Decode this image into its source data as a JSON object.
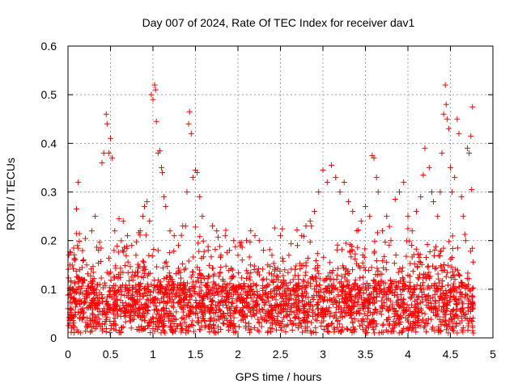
{
  "chart_data": {
    "type": "scatter",
    "title": "Day 007 of 2024, Rate Of TEC Index for receiver dav1",
    "xlabel": "GPS time / hours",
    "ylabel": "ROTI / TECUs",
    "xlim": [
      0,
      5
    ],
    "ylim": [
      0,
      0.6
    ],
    "x_ticks": [
      "0",
      "0.5",
      "1",
      "1.5",
      "2",
      "2.5",
      "3",
      "3.5",
      "4",
      "4.5",
      "5"
    ],
    "y_ticks": [
      "0",
      "0.1",
      "0.2",
      "0.3",
      "0.4",
      "0.5",
      "0.6"
    ],
    "grid": true,
    "legend": "none",
    "marker": "+",
    "color": "#ff0000",
    "data_x_range": [
      0,
      4.77
    ],
    "series": [
      {
        "points": [
          [
            0.0,
            0.06
          ],
          [
            0.01,
            0.17
          ],
          [
            0.02,
            0.03
          ],
          [
            0.03,
            0.175
          ],
          [
            0.05,
            0.1
          ],
          [
            0.07,
            0.08
          ],
          [
            0.1,
            0.265
          ],
          [
            0.12,
            0.32
          ],
          [
            0.14,
            0.12
          ],
          [
            0.18,
            0.05
          ],
          [
            0.22,
            0.15
          ],
          [
            0.28,
            0.22
          ],
          [
            0.32,
            0.25
          ],
          [
            0.36,
            0.18
          ],
          [
            0.4,
            0.36
          ],
          [
            0.42,
            0.38
          ],
          [
            0.45,
            0.46
          ],
          [
            0.46,
            0.44
          ],
          [
            0.48,
            0.38
          ],
          [
            0.5,
            0.41
          ],
          [
            0.52,
            0.37
          ],
          [
            0.55,
            0.22
          ],
          [
            0.6,
            0.245
          ],
          [
            0.65,
            0.24
          ],
          [
            0.7,
            0.21
          ],
          [
            0.75,
            0.19
          ],
          [
            0.8,
            0.17
          ],
          [
            0.85,
            0.22
          ],
          [
            0.88,
            0.25
          ],
          [
            0.9,
            0.27
          ],
          [
            0.93,
            0.28
          ],
          [
            0.96,
            0.24
          ],
          [
            0.98,
            0.5
          ],
          [
            1.0,
            0.49
          ],
          [
            1.02,
            0.52
          ],
          [
            1.03,
            0.51
          ],
          [
            1.04,
            0.445
          ],
          [
            1.06,
            0.38
          ],
          [
            1.08,
            0.385
          ],
          [
            1.1,
            0.35
          ],
          [
            1.11,
            0.34
          ],
          [
            1.13,
            0.29
          ],
          [
            1.15,
            0.27
          ],
          [
            1.2,
            0.22
          ],
          [
            1.25,
            0.21
          ],
          [
            1.3,
            0.19
          ],
          [
            1.35,
            0.23
          ],
          [
            1.4,
            0.3
          ],
          [
            1.42,
            0.44
          ],
          [
            1.43,
            0.465
          ],
          [
            1.45,
            0.42
          ],
          [
            1.47,
            0.33
          ],
          [
            1.5,
            0.345
          ],
          [
            1.52,
            0.34
          ],
          [
            1.55,
            0.29
          ],
          [
            1.58,
            0.25
          ],
          [
            1.65,
            0.18
          ],
          [
            1.7,
            0.23
          ],
          [
            1.75,
            0.22
          ],
          [
            1.8,
            0.17
          ],
          [
            1.85,
            0.21
          ],
          [
            1.9,
            0.18
          ],
          [
            1.95,
            0.2
          ],
          [
            2.0,
            0.17
          ],
          [
            2.05,
            0.16
          ],
          [
            2.1,
            0.2
          ],
          [
            2.15,
            0.22
          ],
          [
            2.2,
            0.21
          ],
          [
            2.25,
            0.2
          ],
          [
            2.3,
            0.18
          ],
          [
            2.35,
            0.15
          ],
          [
            2.4,
            0.17
          ],
          [
            2.45,
            0.12
          ],
          [
            2.5,
            0.21
          ],
          [
            2.55,
            0.14
          ],
          [
            2.6,
            0.17
          ],
          [
            2.65,
            0.12
          ],
          [
            2.7,
            0.19
          ],
          [
            2.75,
            0.21
          ],
          [
            2.8,
            0.23
          ],
          [
            2.85,
            0.24
          ],
          [
            2.9,
            0.26
          ],
          [
            2.95,
            0.3
          ],
          [
            3.0,
            0.345
          ],
          [
            3.05,
            0.32
          ],
          [
            3.1,
            0.355
          ],
          [
            3.15,
            0.33
          ],
          [
            3.2,
            0.3
          ],
          [
            3.25,
            0.32
          ],
          [
            3.3,
            0.28
          ],
          [
            3.35,
            0.26
          ],
          [
            3.4,
            0.22
          ],
          [
            3.45,
            0.24
          ],
          [
            3.5,
            0.27
          ],
          [
            3.55,
            0.25
          ],
          [
            3.58,
            0.375
          ],
          [
            3.6,
            0.37
          ],
          [
            3.63,
            0.33
          ],
          [
            3.65,
            0.3
          ],
          [
            3.7,
            0.22
          ],
          [
            3.75,
            0.25
          ],
          [
            3.8,
            0.2
          ],
          [
            3.85,
            0.285
          ],
          [
            3.9,
            0.3
          ],
          [
            3.95,
            0.32
          ],
          [
            4.0,
            0.25
          ],
          [
            4.05,
            0.22
          ],
          [
            4.1,
            0.26
          ],
          [
            4.15,
            0.29
          ],
          [
            4.18,
            0.335
          ],
          [
            4.2,
            0.39
          ],
          [
            4.25,
            0.35
          ],
          [
            4.28,
            0.3
          ],
          [
            4.3,
            0.28
          ],
          [
            4.35,
            0.25
          ],
          [
            4.38,
            0.3
          ],
          [
            4.4,
            0.38
          ],
          [
            4.42,
            0.46
          ],
          [
            4.44,
            0.52
          ],
          [
            4.45,
            0.48
          ],
          [
            4.46,
            0.45
          ],
          [
            4.48,
            0.43
          ],
          [
            4.5,
            0.35
          ],
          [
            4.52,
            0.3
          ],
          [
            4.55,
            0.33
          ],
          [
            4.58,
            0.45
          ],
          [
            4.6,
            0.42
          ],
          [
            4.63,
            0.29
          ],
          [
            4.65,
            0.25
          ],
          [
            4.68,
            0.2
          ],
          [
            4.7,
            0.39
          ],
          [
            4.72,
            0.38
          ],
          [
            4.74,
            0.415
          ],
          [
            4.75,
            0.305
          ],
          [
            4.76,
            0.475
          ],
          [
            4.77,
            0.01
          ]
        ]
      }
    ]
  }
}
